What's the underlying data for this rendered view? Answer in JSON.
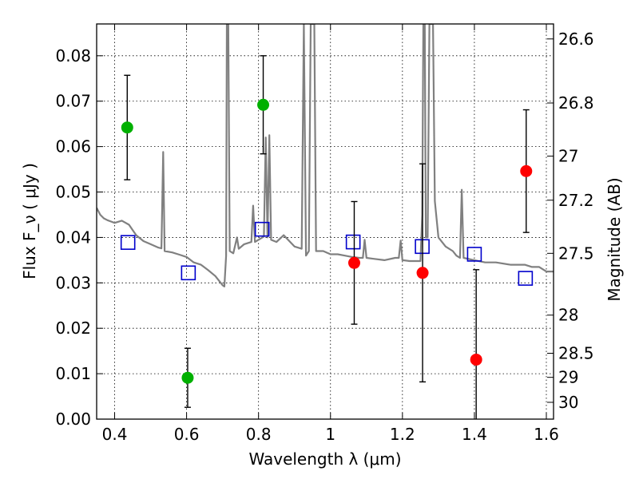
{
  "chart_data": {
    "type": "scatter",
    "xlim": [
      0.35,
      1.62
    ],
    "ylim": [
      0.0,
      0.087
    ],
    "xlabel": "Wavelength  λ (μm)",
    "ylabel": "Flux  F_ν  ( μJy )",
    "y2label": "Magnitude (AB)",
    "grid": true,
    "x_ticks": [
      0.4,
      0.6,
      0.8,
      1.0,
      1.2,
      1.4,
      1.6
    ],
    "x_tick_labels": [
      "0.4",
      "0.6",
      "0.8",
      "1",
      "1.2",
      "1.4",
      "1.6"
    ],
    "y_ticks": [
      0.0,
      0.01,
      0.02,
      0.03,
      0.04,
      0.05,
      0.06,
      0.07,
      0.08
    ],
    "y_tick_labels": [
      "0.00",
      "0.01",
      "0.02",
      "0.03",
      "0.04",
      "0.05",
      "0.06",
      "0.07",
      "0.08"
    ],
    "y2_ticks": [
      {
        "label": "26.6",
        "flux": 0.0837
      },
      {
        "label": "26.8",
        "flux": 0.0696
      },
      {
        "label": "27",
        "flux": 0.0579
      },
      {
        "label": "27.2",
        "flux": 0.0482
      },
      {
        "label": "27.5",
        "flux": 0.0365
      },
      {
        "label": "28",
        "flux": 0.0229
      },
      {
        "label": "28.5",
        "flux": 0.0145
      },
      {
        "label": "29",
        "flux": 0.0092
      },
      {
        "label": "30",
        "flux": 0.0037
      }
    ],
    "series": [
      {
        "kind": "errorbar",
        "marker": "circle",
        "color": "#00b000",
        "points": [
          {
            "x": 0.435,
            "y": 0.0642,
            "err": 0.0115
          },
          {
            "x": 0.603,
            "y": 0.0091,
            "err": 0.0065
          },
          {
            "x": 0.813,
            "y": 0.0692,
            "err": 0.0108
          }
        ]
      },
      {
        "kind": "errorbar",
        "marker": "circle",
        "color": "#ff0000",
        "points": [
          {
            "x": 1.066,
            "y": 0.0344,
            "err": 0.0135
          },
          {
            "x": 1.256,
            "y": 0.0322,
            "err": 0.024
          },
          {
            "x": 1.405,
            "y": 0.0131,
            "err": 0.0198
          },
          {
            "x": 1.544,
            "y": 0.0546,
            "err": 0.0135
          }
        ]
      },
      {
        "kind": "model",
        "marker": "open-square",
        "color": "#0000cc",
        "points": [
          {
            "x": 0.437,
            "y": 0.0389
          },
          {
            "x": 0.605,
            "y": 0.0322
          },
          {
            "x": 0.81,
            "y": 0.0418
          },
          {
            "x": 1.063,
            "y": 0.039
          },
          {
            "x": 1.255,
            "y": 0.038
          },
          {
            "x": 1.4,
            "y": 0.0363
          },
          {
            "x": 1.542,
            "y": 0.031
          }
        ]
      },
      {
        "kind": "spectrum",
        "color": "#808080",
        "points": [
          [
            0.35,
            0.0465
          ],
          [
            0.36,
            0.045
          ],
          [
            0.37,
            0.0442
          ],
          [
            0.38,
            0.0438
          ],
          [
            0.39,
            0.0435
          ],
          [
            0.4,
            0.0432
          ],
          [
            0.42,
            0.0437
          ],
          [
            0.44,
            0.0428
          ],
          [
            0.46,
            0.0405
          ],
          [
            0.48,
            0.0392
          ],
          [
            0.5,
            0.0385
          ],
          [
            0.52,
            0.0378
          ],
          [
            0.53,
            0.0376
          ],
          [
            0.535,
            0.0588
          ],
          [
            0.539,
            0.037
          ],
          [
            0.56,
            0.0367
          ],
          [
            0.58,
            0.0362
          ],
          [
            0.6,
            0.0357
          ],
          [
            0.62,
            0.0345
          ],
          [
            0.64,
            0.034
          ],
          [
            0.66,
            0.0328
          ],
          [
            0.68,
            0.0315
          ],
          [
            0.7,
            0.0295
          ],
          [
            0.705,
            0.0292
          ],
          [
            0.71,
            0.036
          ],
          [
            0.712,
            0.087
          ],
          [
            0.716,
            0.087
          ],
          [
            0.72,
            0.037
          ],
          [
            0.73,
            0.0365
          ],
          [
            0.74,
            0.04
          ],
          [
            0.745,
            0.0375
          ],
          [
            0.76,
            0.0385
          ],
          [
            0.78,
            0.039
          ],
          [
            0.785,
            0.047
          ],
          [
            0.79,
            0.039
          ],
          [
            0.8,
            0.0395
          ],
          [
            0.815,
            0.0402
          ],
          [
            0.82,
            0.062
          ],
          [
            0.825,
            0.04
          ],
          [
            0.83,
            0.0625
          ],
          [
            0.835,
            0.0395
          ],
          [
            0.85,
            0.039
          ],
          [
            0.87,
            0.0405
          ],
          [
            0.9,
            0.038
          ],
          [
            0.92,
            0.0375
          ],
          [
            0.926,
            0.087
          ],
          [
            0.932,
            0.036
          ],
          [
            0.94,
            0.037
          ],
          [
            0.945,
            0.087
          ],
          [
            0.95,
            0.087
          ],
          [
            0.955,
            0.087
          ],
          [
            0.96,
            0.037
          ],
          [
            0.98,
            0.037
          ],
          [
            1.0,
            0.0363
          ],
          [
            1.02,
            0.0363
          ],
          [
            1.04,
            0.036
          ],
          [
            1.06,
            0.0357
          ],
          [
            1.08,
            0.0355
          ],
          [
            1.09,
            0.0355
          ],
          [
            1.095,
            0.0395
          ],
          [
            1.1,
            0.0355
          ],
          [
            1.12,
            0.0353
          ],
          [
            1.15,
            0.035
          ],
          [
            1.18,
            0.0355
          ],
          [
            1.19,
            0.0355
          ],
          [
            1.195,
            0.0393
          ],
          [
            1.2,
            0.035
          ],
          [
            1.22,
            0.0348
          ],
          [
            1.25,
            0.0348
          ],
          [
            1.255,
            0.045
          ],
          [
            1.258,
            0.087
          ],
          [
            1.262,
            0.087
          ],
          [
            1.265,
            0.04
          ],
          [
            1.27,
            0.04
          ],
          [
            1.275,
            0.087
          ],
          [
            1.285,
            0.087
          ],
          [
            1.29,
            0.048
          ],
          [
            1.3,
            0.04
          ],
          [
            1.32,
            0.038
          ],
          [
            1.34,
            0.037
          ],
          [
            1.35,
            0.036
          ],
          [
            1.36,
            0.0355
          ],
          [
            1.365,
            0.0505
          ],
          [
            1.37,
            0.0355
          ],
          [
            1.4,
            0.035
          ],
          [
            1.43,
            0.0345
          ],
          [
            1.46,
            0.0345
          ],
          [
            1.5,
            0.034
          ],
          [
            1.54,
            0.034
          ],
          [
            1.56,
            0.0335
          ],
          [
            1.58,
            0.0335
          ],
          [
            1.6,
            0.0325
          ],
          [
            1.62,
            0.0325
          ]
        ]
      }
    ]
  }
}
